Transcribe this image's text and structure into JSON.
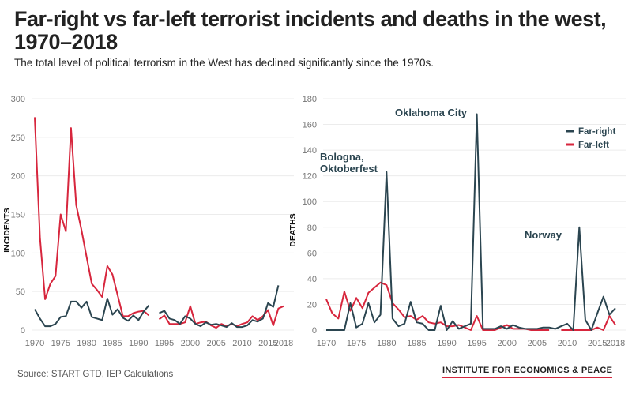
{
  "title": "Far-right vs far-left terrorist incidents and deaths in the west, 1970–2018",
  "subtitle": "The total level of political terrorism in the West has declined significantly since the 1970s.",
  "source": "Source: START GTD, IEP Calculations",
  "brand": "INSTITUTE FOR ECONOMICS & PEACE",
  "colors": {
    "far_right": "#2b4550",
    "far_left": "#d7263d",
    "grid": "#ececec"
  },
  "chart_data": [
    {
      "type": "line",
      "title": "",
      "xlabel": "",
      "ylabel": "INCIDENTS",
      "xlim": [
        1970,
        2018
      ],
      "ylim": [
        0,
        300
      ],
      "xticks": [
        1970,
        1975,
        1980,
        1985,
        1990,
        1995,
        2000,
        2005,
        2010,
        2015,
        2018
      ],
      "yticks": [
        0,
        50,
        100,
        150,
        200,
        250,
        300
      ],
      "x": [
        1970,
        1971,
        1972,
        1973,
        1974,
        1975,
        1976,
        1977,
        1978,
        1979,
        1980,
        1981,
        1982,
        1983,
        1984,
        1985,
        1986,
        1987,
        1988,
        1989,
        1990,
        1991,
        1992,
        1993,
        1994,
        1995,
        1996,
        1997,
        1998,
        1999,
        2000,
        2001,
        2002,
        2003,
        2004,
        2005,
        2006,
        2007,
        2008,
        2009,
        2010,
        2011,
        2012,
        2013,
        2014,
        2015,
        2016,
        2017,
        2018
      ],
      "series": [
        {
          "name": "Far-right",
          "values": [
            27,
            15,
            5,
            5,
            8,
            17,
            18,
            37,
            37,
            29,
            37,
            17,
            15,
            13,
            41,
            20,
            27,
            16,
            12,
            19,
            13,
            24,
            32,
            null,
            22,
            25,
            15,
            13,
            8,
            18,
            15,
            8,
            5,
            10,
            7,
            8,
            6,
            4,
            9,
            4,
            4,
            6,
            13,
            11,
            15,
            35,
            30,
            58,
            null
          ]
        },
        {
          "name": "Far-left",
          "values": [
            276,
            120,
            40,
            60,
            70,
            150,
            128,
            262,
            162,
            130,
            95,
            60,
            52,
            43,
            83,
            72,
            45,
            18,
            18,
            22,
            24,
            25,
            19,
            null,
            14,
            19,
            8,
            8,
            8,
            10,
            31,
            8,
            10,
            11,
            6,
            3,
            8,
            5,
            8,
            5,
            8,
            10,
            18,
            13,
            18,
            26,
            6,
            28,
            31
          ]
        }
      ],
      "legend": "none"
    },
    {
      "type": "line",
      "title": "",
      "xlabel": "",
      "ylabel": "DEATHS",
      "xlim": [
        1970,
        2018
      ],
      "ylim": [
        0,
        180
      ],
      "xticks": [
        1970,
        1975,
        1980,
        1985,
        1990,
        1995,
        2000,
        2005,
        2010,
        2015,
        2018
      ],
      "yticks": [
        0,
        20,
        40,
        60,
        80,
        100,
        120,
        140,
        160,
        180
      ],
      "x": [
        1970,
        1971,
        1972,
        1973,
        1974,
        1975,
        1976,
        1977,
        1978,
        1979,
        1980,
        1981,
        1982,
        1983,
        1984,
        1985,
        1986,
        1987,
        1988,
        1989,
        1990,
        1991,
        1992,
        1993,
        1994,
        1995,
        1996,
        1997,
        1998,
        1999,
        2000,
        2001,
        2002,
        2003,
        2004,
        2005,
        2006,
        2007,
        2008,
        2009,
        2010,
        2011,
        2012,
        2013,
        2014,
        2015,
        2016,
        2017,
        2018
      ],
      "series": [
        {
          "name": "Far-right",
          "values": [
            0,
            0,
            0,
            0,
            21,
            2,
            5,
            21,
            6,
            12,
            123,
            9,
            3,
            5,
            22,
            6,
            5,
            0,
            0,
            19,
            0,
            7,
            1,
            3,
            5,
            168,
            1,
            1,
            1,
            3,
            1,
            4,
            2,
            1,
            1,
            1,
            2,
            2,
            1,
            3,
            5,
            0,
            80,
            8,
            0,
            13,
            26,
            12,
            17
          ]
        },
        {
          "name": "Far-left",
          "values": [
            24,
            13,
            9,
            30,
            15,
            25,
            17,
            29,
            33,
            37,
            35,
            21,
            16,
            10,
            11,
            8,
            11,
            6,
            5,
            6,
            3,
            3,
            4,
            2,
            0,
            11,
            0,
            0,
            0,
            2,
            4,
            1,
            1,
            1,
            0,
            0,
            0,
            0,
            null,
            0,
            0,
            0,
            0,
            0,
            0,
            2,
            0,
            11,
            4
          ]
        }
      ],
      "annotations": [
        {
          "text": "Bologna, ",
          "text2": "Oktoberfest",
          "x": 1980,
          "y": 123
        },
        {
          "text": "Oklahoma City",
          "x": 1995,
          "y": 168
        },
        {
          "text": "Norway",
          "x": 2012,
          "y": 80
        }
      ],
      "legend": "top-right",
      "legend_entries": [
        "Far-right",
        "Far-left"
      ]
    }
  ]
}
